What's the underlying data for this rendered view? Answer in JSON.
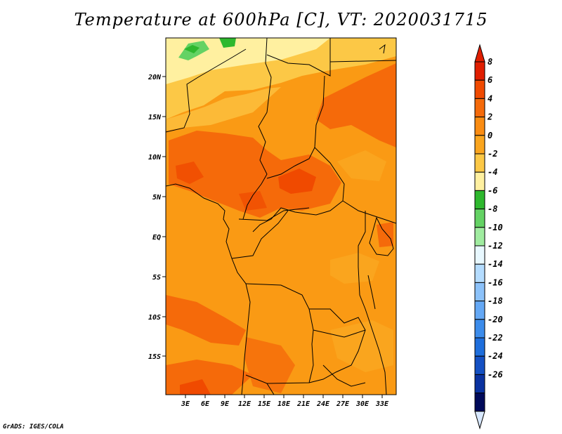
{
  "title": "Temperature at 600hPa [C], VT: 2020031715",
  "credit": "GrADS: IGES/COLA",
  "map": {
    "lat_labels": [
      "20N",
      "15N",
      "10N",
      "5N",
      "EQ",
      "5S",
      "10S",
      "15S"
    ],
    "lon_labels": [
      "3E",
      "6E",
      "9E",
      "12E",
      "15E",
      "18E",
      "21E",
      "24E",
      "27E",
      "30E",
      "33E"
    ]
  },
  "colorbar": {
    "labels": [
      "8",
      "6",
      "4",
      "2",
      "0",
      "-2",
      "-4",
      "-6",
      "-8",
      "-10",
      "-12",
      "-14",
      "-16",
      "-18",
      "-20",
      "-22",
      "-24",
      "-26"
    ],
    "colors": [
      "#e01e00",
      "#f04a00",
      "#f56a0a",
      "#fa8c12",
      "#faa51e",
      "#fcc846",
      "#fff0a0",
      "#2eb82e",
      "#64d264",
      "#a0eca0",
      "#e8f8ff",
      "#b4dcff",
      "#8cc2fa",
      "#64a8f5",
      "#3c8ceb",
      "#1e6edc",
      "#1450c3",
      "#0a32a0",
      "#000a5a"
    ],
    "top_tip_color": "#e01e00",
    "bottom_tip_color": "#d8e8ff"
  }
}
